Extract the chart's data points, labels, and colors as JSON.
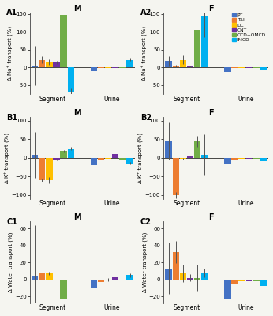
{
  "colors": {
    "PT": "#4472C4",
    "TAL": "#ED7D31",
    "DCT": "#FFC000",
    "CNT": "#7030A0",
    "CCD+OMCD": "#70AD47",
    "IMCD": "#00B0F0"
  },
  "bg_color": "#F5F5F0",
  "panels": {
    "A1": {
      "title": "M",
      "ylabel": "Δ Na⁺ transport (%)",
      "ylim": [
        -75,
        155
      ],
      "yticks": [
        -50,
        0,
        50,
        100,
        150
      ],
      "segment": [
        5,
        22,
        16,
        14,
        148,
        -68
      ],
      "seg_err": [
        55,
        10,
        8,
        4,
        0,
        8
      ],
      "urine": [
        -10,
        -2,
        -2,
        -2,
        -2,
        22
      ],
      "uri_err": [
        0,
        0,
        0,
        0,
        0,
        4
      ]
    },
    "A2": {
      "title": "F",
      "ylabel": "Δ Na⁺ transport (%)",
      "ylim": [
        -75,
        155
      ],
      "yticks": [
        -50,
        0,
        50,
        100,
        150
      ],
      "segment": [
        18,
        5,
        22,
        4,
        105,
        145
      ],
      "seg_err": [
        15,
        3,
        12,
        2,
        0,
        60
      ],
      "urine": [
        -12,
        -2,
        -2,
        -2,
        -2,
        -5
      ],
      "uri_err": [
        0,
        0,
        0,
        0,
        0,
        2
      ]
    },
    "B1": {
      "title": "M",
      "ylabel": "Δ K⁺ transport (%)",
      "ylim": [
        -110,
        110
      ],
      "yticks": [
        -100,
        -50,
        0,
        50,
        100
      ],
      "segment": [
        8,
        -60,
        -60,
        -5,
        18,
        25
      ],
      "seg_err": [
        62,
        5,
        8,
        2,
        3,
        5
      ],
      "urine": [
        -20,
        -5,
        -2,
        10,
        -5,
        -15
      ],
      "uri_err": [
        0,
        0,
        0,
        0,
        0,
        3
      ]
    },
    "B2": {
      "title": "F",
      "ylabel": "Δ K⁺ transport (%)",
      "ylim": [
        -110,
        110
      ],
      "yticks": [
        -100,
        -50,
        0,
        50,
        100
      ],
      "segment": [
        46,
        -100,
        -2,
        5,
        45,
        8
      ],
      "seg_err": [
        50,
        8,
        2,
        2,
        15,
        55
      ],
      "urine": [
        -18,
        -5,
        -2,
        -2,
        -3,
        -8
      ],
      "uri_err": [
        0,
        0,
        0,
        0,
        0,
        3
      ]
    },
    "C1": {
      "title": "M",
      "ylabel": "Δ Water transport (%)",
      "ylim": [
        -28,
        68
      ],
      "yticks": [
        -20,
        0,
        20,
        40,
        60
      ],
      "segment": [
        4,
        8,
        7,
        0,
        -22,
        0
      ],
      "seg_err": [
        60,
        0,
        2,
        0,
        0,
        0
      ],
      "urine": [
        -10,
        -3,
        0,
        3,
        0,
        5
      ],
      "uri_err": [
        0,
        0,
        2,
        0,
        0,
        2
      ]
    },
    "C2": {
      "title": "F",
      "ylabel": "Δ Water transport (%)",
      "ylim": [
        -28,
        68
      ],
      "yticks": [
        -20,
        0,
        20,
        40,
        60
      ],
      "segment": [
        13,
        32,
        7,
        2,
        2,
        8
      ],
      "seg_err": [
        30,
        13,
        10,
        4,
        15,
        5
      ],
      "urine": [
        -22,
        -5,
        -2,
        -2,
        -2,
        -8
      ],
      "uri_err": [
        0,
        0,
        0,
        0,
        0,
        2
      ]
    }
  },
  "segments_keys": [
    "PT",
    "TAL",
    "DCT",
    "CNT",
    "CCD+OMCD",
    "IMCD"
  ],
  "panel_grid": [
    [
      "A1",
      "A2"
    ],
    [
      "B1",
      "B2"
    ],
    [
      "C1",
      "C2"
    ]
  ]
}
